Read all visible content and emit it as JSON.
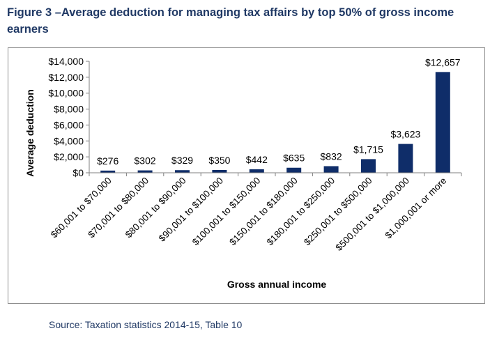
{
  "title": "Figure 3 –Average deduction for managing tax affairs by top 50% of gross income earners",
  "source": "Source: Taxation statistics 2014-15, Table 10",
  "colors": {
    "bar": "#0f2d69",
    "title": "#1f3864",
    "axis": "#808080",
    "text": "#000000"
  },
  "chart_data": {
    "type": "bar",
    "title": "",
    "xlabel": "Gross annual income",
    "ylabel": "Average deduction",
    "ylim": [
      0,
      14000
    ],
    "yticks": [
      0,
      2000,
      4000,
      6000,
      8000,
      10000,
      12000,
      14000
    ],
    "ytick_labels": [
      "$0",
      "$2,000",
      "$4,000",
      "$6,000",
      "$8,000",
      "$10,000",
      "$12,000",
      "$14,000"
    ],
    "grid": false,
    "legend": "none",
    "categories": [
      "$60,001 to $70,000",
      "$70,001 to $80,000",
      "$80,001 to $90,000",
      "$90,001 to $100,000",
      "$100,001 to $150,000",
      "$150,001 to $180,000",
      "$180,001 to $250,000",
      "$250,001 to $500,000",
      "$500,001 to $1,000,000",
      "$1,000,001 or more"
    ],
    "values": [
      276,
      302,
      329,
      350,
      442,
      635,
      832,
      1715,
      3623,
      12657
    ],
    "data_labels": [
      "$276",
      "$302",
      "$329",
      "$350",
      "$442",
      "$635",
      "$832",
      "$1,715",
      "$3,623",
      "$12,657"
    ]
  }
}
